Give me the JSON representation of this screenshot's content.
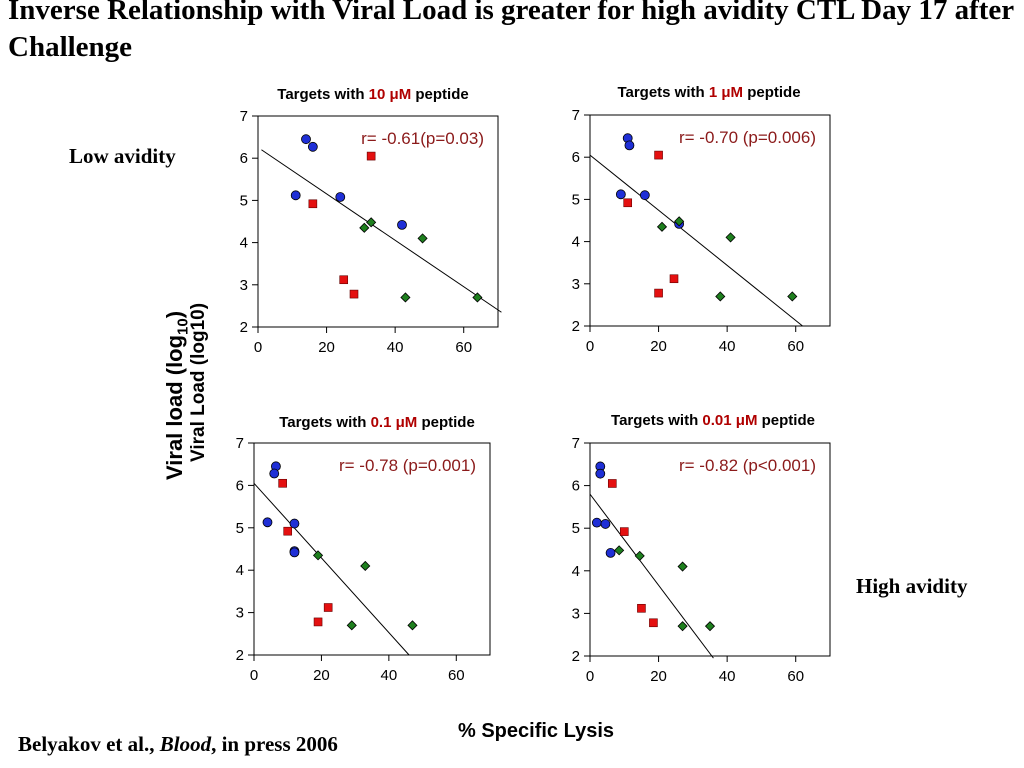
{
  "title": "Inverse Relationship with Viral Load is greater for high avidity CTL Day 17 after Challenge",
  "labels": {
    "low_avidity": "Low avidity",
    "high_avidity": "High avidity",
    "xlabel": "% Specific Lysis",
    "ylabel_main": "Viral load (log",
    "ylabel_sub": "10",
    "ylabel_close": ")",
    "ylabel_overlap": "Viral Load (log10)"
  },
  "citation": {
    "authors": "Belyakov et al., ",
    "journal": "Blood",
    "rest": ", in press 2006"
  },
  "colors": {
    "blue": "#1f2fd6",
    "red": "#e41010",
    "green": "#1e7f1e",
    "annotation": "#8b1a1a",
    "highlight": "#b00000"
  },
  "chart_data": [
    {
      "type": "scatter",
      "title_prefix": "Targets with ",
      "title_highlight": "10 μM",
      "title_suffix": " peptide",
      "annotation": "r= -0.61(p=0.03)",
      "xlim": [
        0,
        70
      ],
      "ylim": [
        2,
        7
      ],
      "xticks": [
        0,
        20,
        40,
        60
      ],
      "yticks": [
        2,
        3,
        4,
        5,
        6,
        7
      ],
      "regression": [
        [
          1,
          6.2
        ],
        [
          71,
          2.35
        ]
      ],
      "series": [
        {
          "marker": "circle",
          "color": "blue",
          "points": [
            [
              14,
              6.45
            ],
            [
              16,
              6.27
            ],
            [
              11,
              5.12
            ],
            [
              24,
              5.08
            ],
            [
              42,
              4.42
            ]
          ]
        },
        {
          "marker": "square",
          "color": "red",
          "points": [
            [
              33,
              6.05
            ],
            [
              16,
              4.92
            ],
            [
              25,
              3.12
            ],
            [
              28,
              2.78
            ]
          ]
        },
        {
          "marker": "diamond",
          "color": "green",
          "points": [
            [
              33,
              4.48
            ],
            [
              31,
              4.35
            ],
            [
              48,
              4.1
            ],
            [
              43,
              2.7
            ],
            [
              64,
              2.7
            ]
          ]
        }
      ]
    },
    {
      "type": "scatter",
      "title_prefix": "Targets with ",
      "title_highlight": "1 μM",
      "title_suffix": " peptide",
      "annotation": "r= -0.70 (p=0.006)",
      "xlim": [
        0,
        70
      ],
      "ylim": [
        2,
        7
      ],
      "xticks": [
        0,
        20,
        40,
        60
      ],
      "yticks": [
        2,
        3,
        4,
        5,
        6,
        7
      ],
      "regression": [
        [
          0,
          6.05
        ],
        [
          62,
          2.0
        ]
      ],
      "series": [
        {
          "marker": "circle",
          "color": "blue",
          "points": [
            [
              11,
              6.45
            ],
            [
              11.5,
              6.28
            ],
            [
              9,
              5.12
            ],
            [
              16,
              5.1
            ],
            [
              26,
              4.42
            ]
          ]
        },
        {
          "marker": "square",
          "color": "red",
          "points": [
            [
              20,
              6.05
            ],
            [
              11,
              4.92
            ],
            [
              24.5,
              3.12
            ],
            [
              20,
              2.78
            ]
          ]
        },
        {
          "marker": "diamond",
          "color": "green",
          "points": [
            [
              26,
              4.48
            ],
            [
              21,
              4.35
            ],
            [
              41,
              4.1
            ],
            [
              38,
              2.7
            ],
            [
              59,
              2.7
            ]
          ]
        }
      ]
    },
    {
      "type": "scatter",
      "title_prefix": "Targets with ",
      "title_highlight": "0.1 μM",
      "title_suffix": " peptide",
      "annotation": "r= -0.78  (p=0.001)",
      "xlim": [
        0,
        70
      ],
      "ylim": [
        2,
        7
      ],
      "xticks": [
        0,
        20,
        40,
        60
      ],
      "yticks": [
        2,
        3,
        4,
        5,
        6,
        7
      ],
      "regression": [
        [
          0,
          6.05
        ],
        [
          46,
          2.0
        ]
      ],
      "series": [
        {
          "marker": "circle",
          "color": "blue",
          "points": [
            [
              6.5,
              6.45
            ],
            [
              6,
              6.28
            ],
            [
              4,
              5.13
            ],
            [
              12,
              5.1
            ],
            [
              12,
              4.45
            ],
            [
              12,
              4.42
            ]
          ]
        },
        {
          "marker": "square",
          "color": "red",
          "points": [
            [
              8.5,
              6.05
            ],
            [
              10,
              4.92
            ],
            [
              22,
              3.12
            ],
            [
              19,
              2.78
            ]
          ]
        },
        {
          "marker": "diamond",
          "color": "green",
          "points": [
            [
              19,
              4.35
            ],
            [
              33,
              4.1
            ],
            [
              29,
              2.7
            ],
            [
              47,
              2.7
            ]
          ]
        }
      ]
    },
    {
      "type": "scatter",
      "title_prefix": "Targets with ",
      "title_highlight": "0.01 μM",
      "title_suffix": " peptide",
      "annotation": "r= -0.82 (p<0.001)",
      "xlim": [
        0,
        70
      ],
      "ylim": [
        2,
        7
      ],
      "xticks": [
        0,
        20,
        40,
        60
      ],
      "yticks": [
        2,
        3,
        4,
        5,
        6,
        7
      ],
      "regression": [
        [
          0,
          5.8
        ],
        [
          36,
          1.95
        ]
      ],
      "series": [
        {
          "marker": "circle",
          "color": "blue",
          "points": [
            [
              3,
              6.45
            ],
            [
              3,
              6.28
            ],
            [
              2,
              5.13
            ],
            [
              4.5,
              5.1
            ],
            [
              6,
              4.42
            ]
          ]
        },
        {
          "marker": "square",
          "color": "red",
          "points": [
            [
              6.5,
              6.05
            ],
            [
              10,
              4.92
            ],
            [
              15,
              3.12
            ],
            [
              18.5,
              2.78
            ]
          ]
        },
        {
          "marker": "diamond",
          "color": "green",
          "points": [
            [
              8.5,
              4.48
            ],
            [
              14.5,
              4.35
            ],
            [
              27,
              4.1
            ],
            [
              27,
              2.7
            ],
            [
              35,
              2.7
            ]
          ]
        }
      ]
    }
  ]
}
